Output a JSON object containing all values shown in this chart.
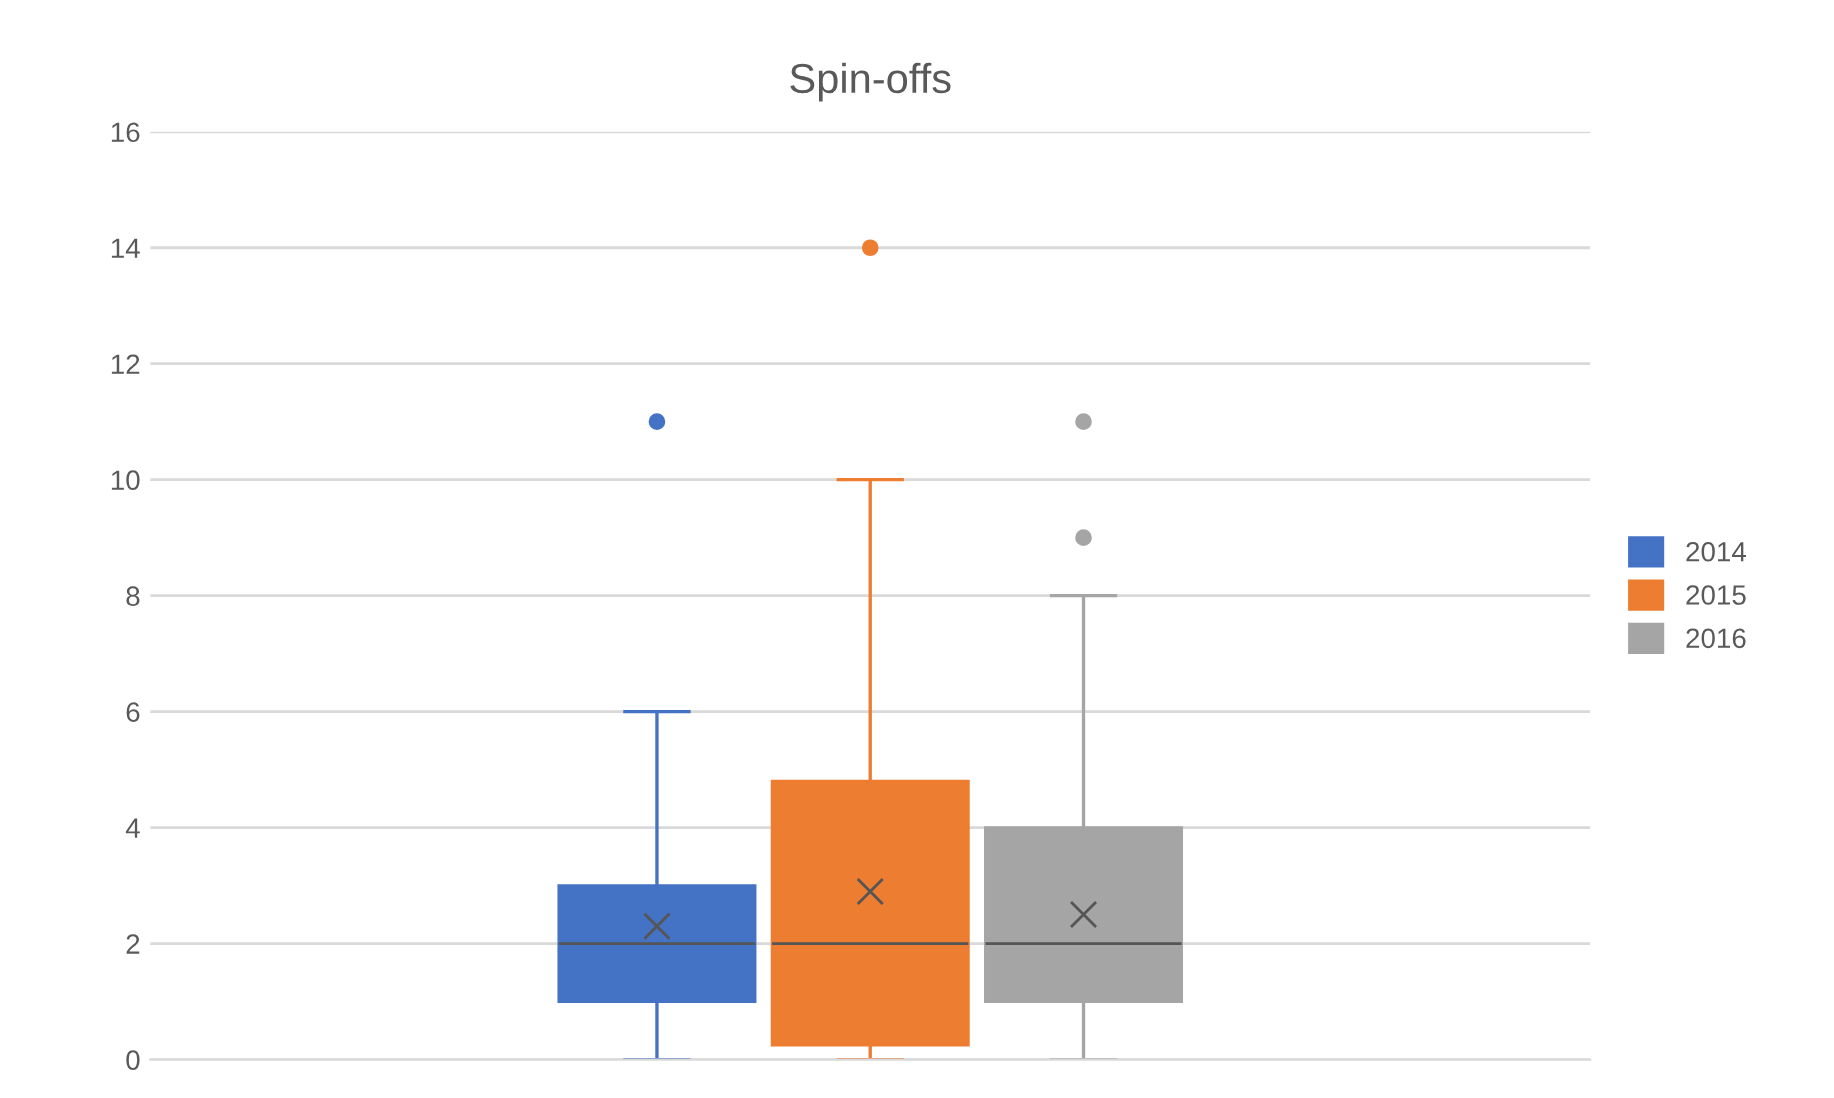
{
  "chart_data": {
    "type": "box",
    "title": "Spin-offs",
    "categories": [
      null
    ],
    "series": [
      {
        "name": "2014",
        "color": "#4472c4",
        "boxes": [
          {
            "low": 0,
            "q1": 1,
            "median": 2,
            "q3": 3,
            "high": 6,
            "mean": 2.3,
            "outliers": [
              11
            ]
          }
        ]
      },
      {
        "name": "2015",
        "color": "#ed7d31",
        "boxes": [
          {
            "low": 0,
            "q1": 0.25,
            "median": 2,
            "q3": 4.8,
            "high": 10,
            "mean": 2.9,
            "outliers": [
              14
            ]
          }
        ]
      },
      {
        "name": "2016",
        "color": "#a5a5a5",
        "boxes": [
          {
            "low": 0,
            "q1": 1,
            "median": 2,
            "q3": 4,
            "high": 8,
            "mean": 2.5,
            "outliers": [
              9,
              11
            ]
          }
        ]
      }
    ],
    "ylim": [
      0,
      16
    ],
    "yticks": [
      0,
      2,
      4,
      6,
      8,
      10,
      12,
      14,
      16
    ],
    "grid": "y",
    "legend": "right",
    "tick_labels": "y"
  }
}
